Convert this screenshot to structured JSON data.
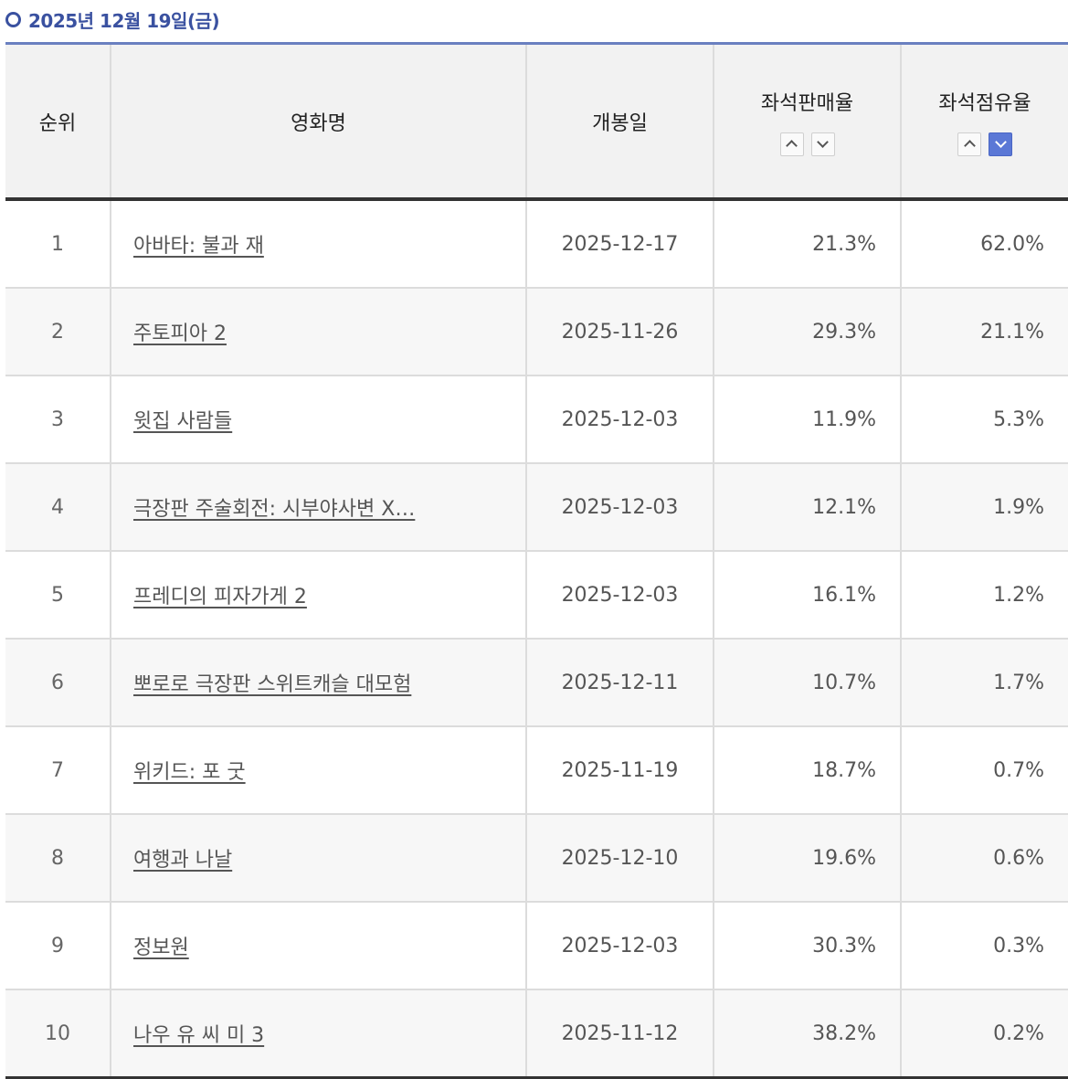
{
  "heading": "2025년 12월 19일(금)",
  "columns": {
    "rank": "순위",
    "title": "영화명",
    "open_date": "개봉일",
    "seat_sales_rate": "좌석판매율",
    "seat_share_rate": "좌석점유율"
  },
  "sort_controls": {
    "seat_sales_rate": {
      "up_icon": "chevron-up-icon",
      "down_icon": "chevron-down-icon",
      "active": "none"
    },
    "seat_share_rate": {
      "up_icon": "chevron-up-icon",
      "down_icon": "chevron-down-icon",
      "active": "down"
    }
  },
  "colors": {
    "accent": "#3a51a0",
    "active_sort": "#5b78d6"
  },
  "rows": [
    {
      "rank": "1",
      "title": "아바타: 불과 재",
      "open_date": "2025-12-17",
      "seat_sales_rate": "21.3%",
      "seat_share_rate": "62.0%"
    },
    {
      "rank": "2",
      "title": "주토피아 2",
      "open_date": "2025-11-26",
      "seat_sales_rate": "29.3%",
      "seat_share_rate": "21.1%"
    },
    {
      "rank": "3",
      "title": "윗집 사람들",
      "open_date": "2025-12-03",
      "seat_sales_rate": "11.9%",
      "seat_share_rate": "5.3%"
    },
    {
      "rank": "4",
      "title": "극장판 주술회전: 시부야사변 X…",
      "open_date": "2025-12-03",
      "seat_sales_rate": "12.1%",
      "seat_share_rate": "1.9%"
    },
    {
      "rank": "5",
      "title": "프레디의 피자가게 2",
      "open_date": "2025-12-03",
      "seat_sales_rate": "16.1%",
      "seat_share_rate": "1.2%"
    },
    {
      "rank": "6",
      "title": "뽀로로 극장판 스위트캐슬 대모험",
      "open_date": "2025-12-11",
      "seat_sales_rate": "10.7%",
      "seat_share_rate": "1.7%"
    },
    {
      "rank": "7",
      "title": "위키드: 포 굿",
      "open_date": "2025-11-19",
      "seat_sales_rate": "18.7%",
      "seat_share_rate": "0.7%"
    },
    {
      "rank": "8",
      "title": "여행과 나날",
      "open_date": "2025-12-10",
      "seat_sales_rate": "19.6%",
      "seat_share_rate": "0.6%"
    },
    {
      "rank": "9",
      "title": "정보원",
      "open_date": "2025-12-03",
      "seat_sales_rate": "30.3%",
      "seat_share_rate": "0.3%"
    },
    {
      "rank": "10",
      "title": "나우 유 씨 미 3",
      "open_date": "2025-11-12",
      "seat_sales_rate": "38.2%",
      "seat_share_rate": "0.2%"
    }
  ]
}
